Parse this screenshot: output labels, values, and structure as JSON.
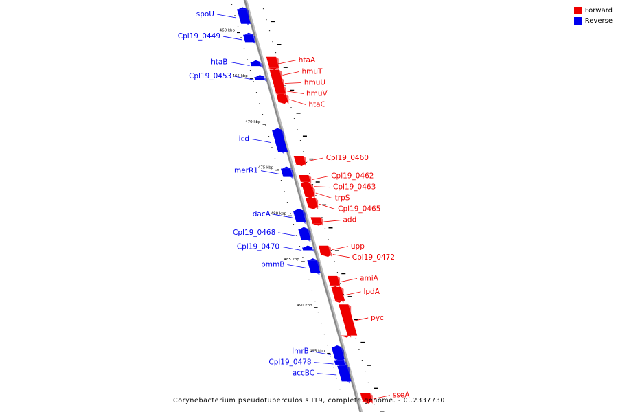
{
  "map": {
    "caption": "Corynebacterium pseudotuberculosis I19, complete genome. - 0..2337730",
    "legend": [
      {
        "label": "Forward",
        "color": "#ee0000"
      },
      {
        "label": "Reverse",
        "color": "#0000ee"
      }
    ],
    "colors": {
      "forward": "#ee0000",
      "reverse": "#0000ee",
      "backbone": "#888888",
      "tick": "#000000"
    },
    "ticks": [
      {
        "label": "460 kbp",
        "kbp": 460
      },
      {
        "label": "465 kbp",
        "kbp": 465
      },
      {
        "label": "470 kbp",
        "kbp": 470
      },
      {
        "label": "475 kbp",
        "kbp": 475
      },
      {
        "label": "480 kbp",
        "kbp": 480
      },
      {
        "label": "485 kbp",
        "kbp": 485
      },
      {
        "label": "490 kbp",
        "kbp": 490
      },
      {
        "label": "495 kbp",
        "kbp": 495
      }
    ],
    "genes": [
      {
        "name": "spoU",
        "strand": "reverse",
        "start_kbp": 457.6,
        "end_kbp": 459.2
      },
      {
        "name": "Cpl19_0449",
        "strand": "reverse",
        "start_kbp": 460.4,
        "end_kbp": 461.2
      },
      {
        "name": "htaB",
        "strand": "reverse",
        "start_kbp": 463.4,
        "end_kbp": 463.8
      },
      {
        "name": "Cpl19_0453",
        "strand": "reverse",
        "start_kbp": 465.0,
        "end_kbp": 465.3
      },
      {
        "name": "htaA",
        "strand": "forward",
        "start_kbp": 462.8,
        "end_kbp": 464.0
      },
      {
        "name": "hmuT",
        "strand": "forward",
        "start_kbp": 464.2,
        "end_kbp": 465.1
      },
      {
        "name": "hmuU",
        "strand": "forward",
        "start_kbp": 465.1,
        "end_kbp": 466.0
      },
      {
        "name": "hmuV",
        "strand": "forward",
        "start_kbp": 466.0,
        "end_kbp": 466.8
      },
      {
        "name": "htaC",
        "strand": "forward",
        "start_kbp": 466.9,
        "end_kbp": 467.7
      },
      {
        "name": "icd",
        "strand": "reverse",
        "start_kbp": 470.8,
        "end_kbp": 473.2
      },
      {
        "name": "Cpl19_0460",
        "strand": "forward",
        "start_kbp": 473.6,
        "end_kbp": 474.5
      },
      {
        "name": "merR1",
        "strand": "reverse",
        "start_kbp": 475.0,
        "end_kbp": 475.9
      },
      {
        "name": "Cpl19_0462",
        "strand": "forward",
        "start_kbp": 475.7,
        "end_kbp": 476.4
      },
      {
        "name": "Cpl19_0463",
        "strand": "forward",
        "start_kbp": 476.6,
        "end_kbp": 477.0
      },
      {
        "name": "trpS",
        "strand": "forward",
        "start_kbp": 477.0,
        "end_kbp": 478.0
      },
      {
        "name": "Cpl19_0465",
        "strand": "forward",
        "start_kbp": 478.2,
        "end_kbp": 479.2
      },
      {
        "name": "add",
        "strand": "forward",
        "start_kbp": 480.3,
        "end_kbp": 481.0
      },
      {
        "name": "dacA",
        "strand": "reverse",
        "start_kbp": 479.6,
        "end_kbp": 480.8
      },
      {
        "name": "Cpl19_0468",
        "strand": "reverse",
        "start_kbp": 481.6,
        "end_kbp": 482.8
      },
      {
        "name": "Cpl19_0470",
        "strand": "reverse",
        "start_kbp": 483.6,
        "end_kbp": 483.9
      },
      {
        "name": "upp",
        "strand": "forward",
        "start_kbp": 483.4,
        "end_kbp": 484.0
      },
      {
        "name": "Cpl19_0472",
        "strand": "forward",
        "start_kbp": 484.0,
        "end_kbp": 484.4
      },
      {
        "name": "pmmB",
        "strand": "reverse",
        "start_kbp": 485.0,
        "end_kbp": 486.4
      },
      {
        "name": "amiA",
        "strand": "forward",
        "start_kbp": 486.7,
        "end_kbp": 487.7
      },
      {
        "name": "lpdA",
        "strand": "forward",
        "start_kbp": 487.9,
        "end_kbp": 489.4
      },
      {
        "name": "pyc",
        "strand": "forward",
        "start_kbp": 489.8,
        "end_kbp": 493.2
      },
      {
        "name": "lmrB",
        "strand": "reverse",
        "start_kbp": 494.5,
        "end_kbp": 495.8
      },
      {
        "name": "Cpl19_0478",
        "strand": "reverse",
        "start_kbp": 495.9,
        "end_kbp": 496.4
      },
      {
        "name": "accBC",
        "strand": "reverse",
        "start_kbp": 496.5,
        "end_kbp": 498.2
      },
      {
        "name": "sseA",
        "strand": "forward",
        "start_kbp": 499.5,
        "end_kbp": 500.4
      }
    ]
  }
}
